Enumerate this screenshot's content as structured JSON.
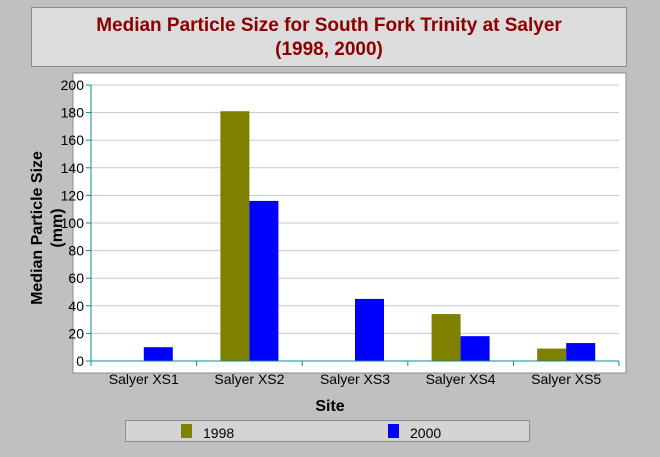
{
  "chart_data": {
    "type": "bar",
    "title_line1": "Median Particle Size for South Fork Trinity at Salyer",
    "title_line2": "(1998, 2000)",
    "xlabel": "Site",
    "ylabel_line1": "Median Particle Size",
    "ylabel_line2": "(mm)",
    "categories": [
      "Salyer XS1",
      "Salyer XS2",
      "Salyer XS3",
      "Salyer XS4",
      "Salyer XS5"
    ],
    "series": [
      {
        "name": "1998",
        "color": "#808000",
        "values": [
          null,
          181,
          null,
          34,
          9
        ]
      },
      {
        "name": "2000",
        "color": "#0000ff",
        "values": [
          10,
          116,
          45,
          18,
          13
        ]
      }
    ],
    "ylim": [
      0,
      200
    ],
    "yticks": [
      0,
      20,
      40,
      60,
      80,
      100,
      120,
      140,
      160,
      180,
      200
    ],
    "grid": true,
    "legend_position": "bottom"
  }
}
